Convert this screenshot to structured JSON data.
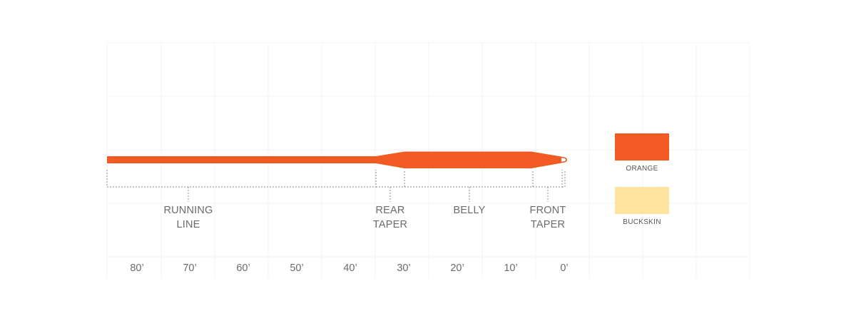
{
  "segments": [
    {
      "key": "running_line",
      "lines": [
        "RUNNING",
        "LINE"
      ]
    },
    {
      "key": "rear_taper",
      "lines": [
        "REAR",
        "TAPER"
      ]
    },
    {
      "key": "belly",
      "lines": [
        "BELLY",
        ""
      ]
    },
    {
      "key": "front_taper",
      "lines": [
        "FRONT",
        "TAPER"
      ]
    }
  ],
  "scale": [
    "80’",
    "70’",
    "60’",
    "50’",
    "40’",
    "30’",
    "20’",
    "10’",
    "0’"
  ],
  "colors": [
    {
      "name": "ORANGE",
      "hex": "#f15a22"
    },
    {
      "name": "BUCKSKIN",
      "hex": "#fde49e"
    }
  ],
  "line_color": "#f15a22"
}
